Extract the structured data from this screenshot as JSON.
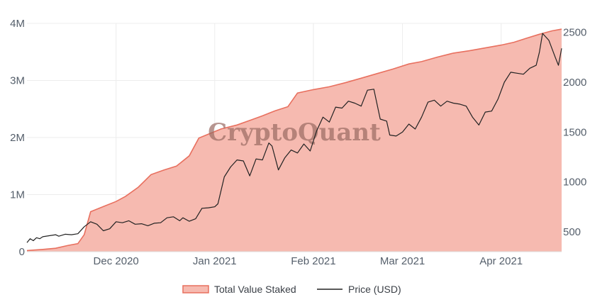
{
  "watermark": "CryptoQuant",
  "chart_data": {
    "type": "area",
    "title": "",
    "xlabel": "",
    "ylabel": "",
    "x_ticks": [
      {
        "date": "2020-12-01",
        "label": "Dec 2020"
      },
      {
        "date": "2021-01-01",
        "label": "Jan 2021"
      },
      {
        "date": "2021-02-01",
        "label": "Feb 2021"
      },
      {
        "date": "2021-03-01",
        "label": "Mar 2021"
      },
      {
        "date": "2021-04-01",
        "label": "Apr 2021"
      }
    ],
    "xlim": [
      "2020-11-03",
      "2021-04-20"
    ],
    "y_left": {
      "range": [
        0,
        4000000
      ],
      "ticks": [
        {
          "v": 0,
          "label": "0"
        },
        {
          "v": 1000000,
          "label": "1M"
        },
        {
          "v": 2000000,
          "label": "2M"
        },
        {
          "v": 3000000,
          "label": "3M"
        },
        {
          "v": 4000000,
          "label": "4M"
        }
      ]
    },
    "y_right": {
      "range": [
        300,
        2590
      ],
      "ticks": [
        {
          "v": 500,
          "label": "500"
        },
        {
          "v": 1000,
          "label": "1000"
        },
        {
          "v": 1500,
          "label": "1500"
        },
        {
          "v": 2000,
          "label": "2000"
        },
        {
          "v": 2500,
          "label": "2500"
        }
      ]
    },
    "grid": true,
    "legend_position": "bottom-center",
    "series": [
      {
        "name": "Total Value Staked",
        "kind": "area",
        "axis": "left",
        "color": "#e8705f",
        "fill": "#f6bab0",
        "points": [
          [
            "2020-11-03",
            20000
          ],
          [
            "2020-11-08",
            40000
          ],
          [
            "2020-11-12",
            60000
          ],
          [
            "2020-11-16",
            110000
          ],
          [
            "2020-11-19",
            140000
          ],
          [
            "2020-11-21",
            300000
          ],
          [
            "2020-11-23",
            700000
          ],
          [
            "2020-11-27",
            790000
          ],
          [
            "2020-12-01",
            880000
          ],
          [
            "2020-12-04",
            970000
          ],
          [
            "2020-12-08",
            1130000
          ],
          [
            "2020-12-12",
            1350000
          ],
          [
            "2020-12-16",
            1430000
          ],
          [
            "2020-12-20",
            1500000
          ],
          [
            "2020-12-24",
            1680000
          ],
          [
            "2020-12-27",
            1990000
          ],
          [
            "2020-12-30",
            2060000
          ],
          [
            "2021-01-03",
            2150000
          ],
          [
            "2021-01-08",
            2220000
          ],
          [
            "2021-01-12",
            2300000
          ],
          [
            "2021-01-16",
            2380000
          ],
          [
            "2021-01-20",
            2470000
          ],
          [
            "2021-01-24",
            2540000
          ],
          [
            "2021-01-27",
            2780000
          ],
          [
            "2021-02-01",
            2840000
          ],
          [
            "2021-02-06",
            2890000
          ],
          [
            "2021-02-11",
            2960000
          ],
          [
            "2021-02-16",
            3040000
          ],
          [
            "2021-02-21",
            3120000
          ],
          [
            "2021-02-26",
            3200000
          ],
          [
            "2021-03-03",
            3290000
          ],
          [
            "2021-03-07",
            3330000
          ],
          [
            "2021-03-12",
            3410000
          ],
          [
            "2021-03-17",
            3480000
          ],
          [
            "2021-03-22",
            3520000
          ],
          [
            "2021-03-27",
            3570000
          ],
          [
            "2021-04-01",
            3620000
          ],
          [
            "2021-04-05",
            3670000
          ],
          [
            "2021-04-09",
            3740000
          ],
          [
            "2021-04-13",
            3810000
          ],
          [
            "2021-04-17",
            3870000
          ],
          [
            "2021-04-20",
            3900000
          ]
        ]
      },
      {
        "name": "Price (USD)",
        "kind": "line",
        "axis": "right",
        "color": "#222222",
        "points": [
          [
            "2020-11-03",
            390
          ],
          [
            "2020-11-04",
            430
          ],
          [
            "2020-11-05",
            410
          ],
          [
            "2020-11-06",
            440
          ],
          [
            "2020-11-07",
            430
          ],
          [
            "2020-11-08",
            450
          ],
          [
            "2020-11-10",
            460
          ],
          [
            "2020-11-12",
            470
          ],
          [
            "2020-11-13",
            455
          ],
          [
            "2020-11-15",
            475
          ],
          [
            "2020-11-17",
            470
          ],
          [
            "2020-11-19",
            480
          ],
          [
            "2020-11-21",
            550
          ],
          [
            "2020-11-23",
            600
          ],
          [
            "2020-11-25",
            575
          ],
          [
            "2020-11-27",
            510
          ],
          [
            "2020-11-29",
            530
          ],
          [
            "2020-12-01",
            600
          ],
          [
            "2020-12-03",
            590
          ],
          [
            "2020-12-05",
            610
          ],
          [
            "2020-12-07",
            575
          ],
          [
            "2020-12-09",
            580
          ],
          [
            "2020-12-11",
            560
          ],
          [
            "2020-12-13",
            585
          ],
          [
            "2020-12-15",
            590
          ],
          [
            "2020-12-17",
            640
          ],
          [
            "2020-12-19",
            650
          ],
          [
            "2020-12-21",
            610
          ],
          [
            "2020-12-22",
            640
          ],
          [
            "2020-12-24",
            605
          ],
          [
            "2020-12-26",
            630
          ],
          [
            "2020-12-28",
            735
          ],
          [
            "2020-12-30",
            740
          ],
          [
            "2021-01-01",
            750
          ],
          [
            "2021-01-02",
            780
          ],
          [
            "2021-01-04",
            1050
          ],
          [
            "2021-01-06",
            1150
          ],
          [
            "2021-01-08",
            1220
          ],
          [
            "2021-01-10",
            1210
          ],
          [
            "2021-01-12",
            1060
          ],
          [
            "2021-01-14",
            1230
          ],
          [
            "2021-01-16",
            1220
          ],
          [
            "2021-01-18",
            1390
          ],
          [
            "2021-01-19",
            1360
          ],
          [
            "2021-01-21",
            1120
          ],
          [
            "2021-01-23",
            1240
          ],
          [
            "2021-01-25",
            1320
          ],
          [
            "2021-01-27",
            1290
          ],
          [
            "2021-01-29",
            1380
          ],
          [
            "2021-01-31",
            1310
          ],
          [
            "2021-02-02",
            1510
          ],
          [
            "2021-02-04",
            1650
          ],
          [
            "2021-02-06",
            1600
          ],
          [
            "2021-02-08",
            1750
          ],
          [
            "2021-02-10",
            1740
          ],
          [
            "2021-02-12",
            1810
          ],
          [
            "2021-02-14",
            1790
          ],
          [
            "2021-02-16",
            1760
          ],
          [
            "2021-02-18",
            1920
          ],
          [
            "2021-02-20",
            1930
          ],
          [
            "2021-02-22",
            1630
          ],
          [
            "2021-02-24",
            1610
          ],
          [
            "2021-02-25",
            1470
          ],
          [
            "2021-02-27",
            1460
          ],
          [
            "2021-03-01",
            1500
          ],
          [
            "2021-03-03",
            1580
          ],
          [
            "2021-03-05",
            1530
          ],
          [
            "2021-03-07",
            1650
          ],
          [
            "2021-03-09",
            1800
          ],
          [
            "2021-03-11",
            1820
          ],
          [
            "2021-03-13",
            1760
          ],
          [
            "2021-03-15",
            1810
          ],
          [
            "2021-03-17",
            1790
          ],
          [
            "2021-03-19",
            1780
          ],
          [
            "2021-03-21",
            1760
          ],
          [
            "2021-03-23",
            1650
          ],
          [
            "2021-03-25",
            1570
          ],
          [
            "2021-03-27",
            1700
          ],
          [
            "2021-03-29",
            1710
          ],
          [
            "2021-03-31",
            1830
          ],
          [
            "2021-04-02",
            2000
          ],
          [
            "2021-04-04",
            2100
          ],
          [
            "2021-04-06",
            2090
          ],
          [
            "2021-04-08",
            2080
          ],
          [
            "2021-04-10",
            2140
          ],
          [
            "2021-04-12",
            2170
          ],
          [
            "2021-04-13",
            2300
          ],
          [
            "2021-04-14",
            2490
          ],
          [
            "2021-04-16",
            2420
          ],
          [
            "2021-04-18",
            2250
          ],
          [
            "2021-04-19",
            2170
          ],
          [
            "2021-04-20",
            2340
          ]
        ]
      }
    ]
  }
}
